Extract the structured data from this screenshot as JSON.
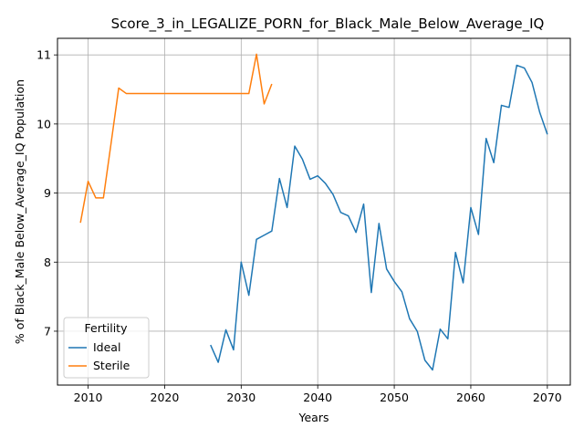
{
  "chart_data": {
    "type": "line",
    "title": "Score_3_in_LEGALIZE_PORN_for_Black_Male_Below_Average_IQ",
    "xlabel": "Years",
    "ylabel": "% of Black_Male Below_Average_IQ Population",
    "xlim": [
      2006,
      2073
    ],
    "ylim": [
      6.22,
      11.24
    ],
    "xticks": [
      2010,
      2020,
      2030,
      2040,
      2050,
      2060,
      2070
    ],
    "yticks": [
      7,
      8,
      9,
      10,
      11
    ],
    "grid": true,
    "legend": {
      "title": "Fertility",
      "placement": "lower-left",
      "entries": [
        "Ideal",
        "Sterile"
      ]
    },
    "series": [
      {
        "name": "Ideal",
        "color": "#1f77b4",
        "x": [
          2026,
          2027,
          2028,
          2029,
          2030,
          2031,
          2032,
          2033,
          2034,
          2035,
          2036,
          2037,
          2038,
          2039,
          2040,
          2041,
          2042,
          2043,
          2044,
          2045,
          2046,
          2047,
          2048,
          2049,
          2050,
          2051,
          2052,
          2053,
          2054,
          2055,
          2056,
          2057,
          2058,
          2059,
          2060,
          2061,
          2062,
          2063,
          2064,
          2065,
          2066,
          2067,
          2068,
          2069,
          2070
        ],
        "y": [
          6.8,
          6.55,
          7.02,
          6.73,
          8.0,
          7.52,
          8.33,
          8.39,
          8.45,
          9.21,
          8.79,
          9.68,
          9.49,
          9.2,
          9.25,
          9.14,
          8.98,
          8.72,
          8.67,
          8.43,
          8.84,
          7.56,
          8.56,
          7.9,
          7.72,
          7.57,
          7.18,
          7.0,
          6.58,
          6.44,
          7.03,
          6.89,
          8.14,
          7.7,
          8.79,
          8.4,
          9.79,
          9.44,
          10.27,
          10.24,
          10.85,
          10.81,
          10.6,
          10.17,
          9.85
        ]
      },
      {
        "name": "Sterile",
        "color": "#ff7f0e",
        "x": [
          2009,
          2010,
          2011,
          2012,
          2013,
          2014,
          2015,
          2016,
          2017,
          2018,
          2019,
          2020,
          2021,
          2022,
          2023,
          2024,
          2025,
          2026,
          2027,
          2028,
          2029,
          2030,
          2031,
          2032,
          2033,
          2034
        ],
        "y": [
          8.57,
          9.17,
          8.93,
          8.93,
          9.72,
          10.52,
          10.44,
          10.44,
          10.44,
          10.44,
          10.44,
          10.44,
          10.44,
          10.44,
          10.44,
          10.44,
          10.44,
          10.44,
          10.44,
          10.44,
          10.44,
          10.44,
          10.44,
          11.01,
          10.29,
          10.58
        ]
      }
    ]
  }
}
